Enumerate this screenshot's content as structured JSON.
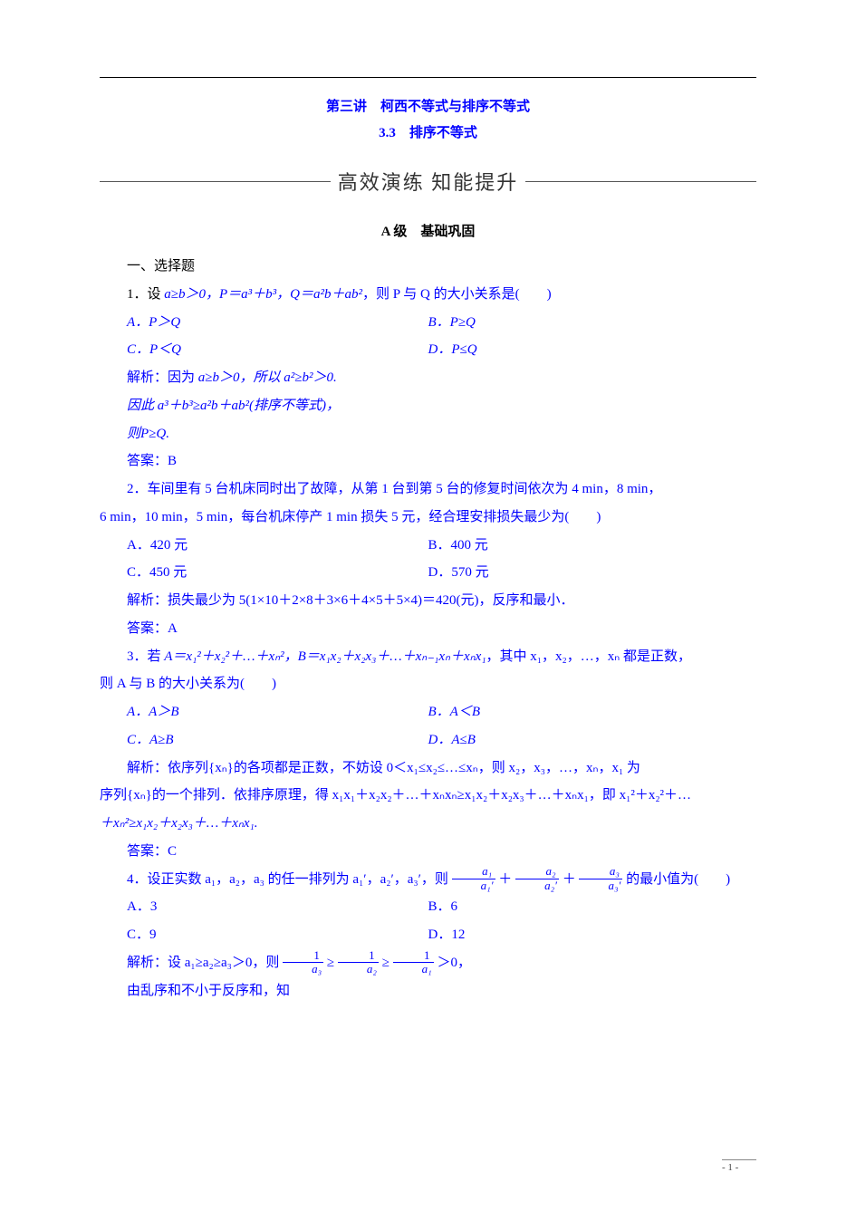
{
  "colors": {
    "accent": "#0000ff",
    "text": "#000000",
    "bg": "#ffffff"
  },
  "header": {
    "lecture": "第三讲　柯西不等式与排序不等式",
    "section": "3.3　排序不等式",
    "banner": "高效演练 知能提升",
    "level": "A 级　基础巩固"
  },
  "sec1_heading": "一、选择题",
  "q1": {
    "stem_pre": "1．设 ",
    "stem_cond": "a≥b＞0，P＝a³＋b³，Q＝a²b＋ab²",
    "stem_post": "，则 P 与 Q 的大小关系是(　　)",
    "optA": "A．P＞Q",
    "optB": "B．P≥Q",
    "optC": "C．P＜Q",
    "optD": "D．P≤Q",
    "expl1_pre": "解析：因为 ",
    "expl1_mid": "a≥b＞0，所以 a²≥b²＞0.",
    "expl2": "因此 a³＋b³≥a²b＋ab²(排序不等式)，",
    "expl3": "则P≥Q.",
    "ans": "答案：B"
  },
  "q2": {
    "stem1": "2．车间里有 5 台机床同时出了故障，从第 1 台到第 5 台的修复时间依次为 4 min，8 min，",
    "stem2": "6 min，10 min，5 min，每台机床停产 1 min 损失 5 元，经合理安排损失最少为(　　)",
    "optA": "A．420 元",
    "optB": "B．400 元",
    "optC": "C．450 元",
    "optD": "D．570 元",
    "expl": "解析：损失最少为 5(1×10＋2×8＋3×6＋4×5＋5×4)＝420(元)，反序和最小．",
    "ans": "答案：A"
  },
  "q3": {
    "stem_pre": "3．若 ",
    "stem_mid1": "A＝x₁²＋x₂²＋…＋xₙ²，B＝x₁x₂＋x₂x₃＋…＋xₙ₋₁xₙ＋xₙx₁",
    "stem_mid2": "，其中 x₁，x₂，…，xₙ 都是正数，",
    "stem2": "则 A 与 B 的大小关系为(　　)",
    "optA": "A．A＞B",
    "optB": "B．A＜B",
    "optC": "C．A≥B",
    "optD": "D．A≤B",
    "expl1": "解析：依序列{xₙ}的各项都是正数，不妨设 0＜x₁≤x₂≤…≤xₙ，则 x₂，x₃，…，xₙ，x₁ 为",
    "expl2": "序列{xₙ}的一个排列．依排序原理，得 x₁x₁＋x₂x₂＋…＋xₙxₙ≥x₁x₂＋x₂x₃＋…＋xₙx₁，即 x₁²＋x₂²＋…",
    "expl3": "＋xₙ²≥x₁x₂＋x₂x₃＋…＋xₙx₁.",
    "ans": "答案：C"
  },
  "q4": {
    "stem_pre": "4．设正实数 a₁，a₂，a₃ 的任一排列为 a₁′，a₂′，a₃′，则",
    "frac1_num": "a₁",
    "frac1_den": "a₁′",
    "frac2_num": "a₂",
    "frac2_den": "a₂′",
    "frac3_num": "a₃",
    "frac3_den": "a₃′",
    "stem_post": "的最小值为(　　)",
    "optA": "A．3",
    "optB": "B．6",
    "optC": "C．9",
    "optD": "D．12",
    "expl1_pre": "解析：设 a₁≥a₂≥a₃＞0，则",
    "ef1_num": "1",
    "ef1_den": "a₃",
    "ef2_num": "1",
    "ef2_den": "a₂",
    "ef3_num": "1",
    "ef3_den": "a₁",
    "expl1_post": "＞0，",
    "expl2": "由乱序和不小于反序和，知"
  },
  "page": "- 1 -"
}
